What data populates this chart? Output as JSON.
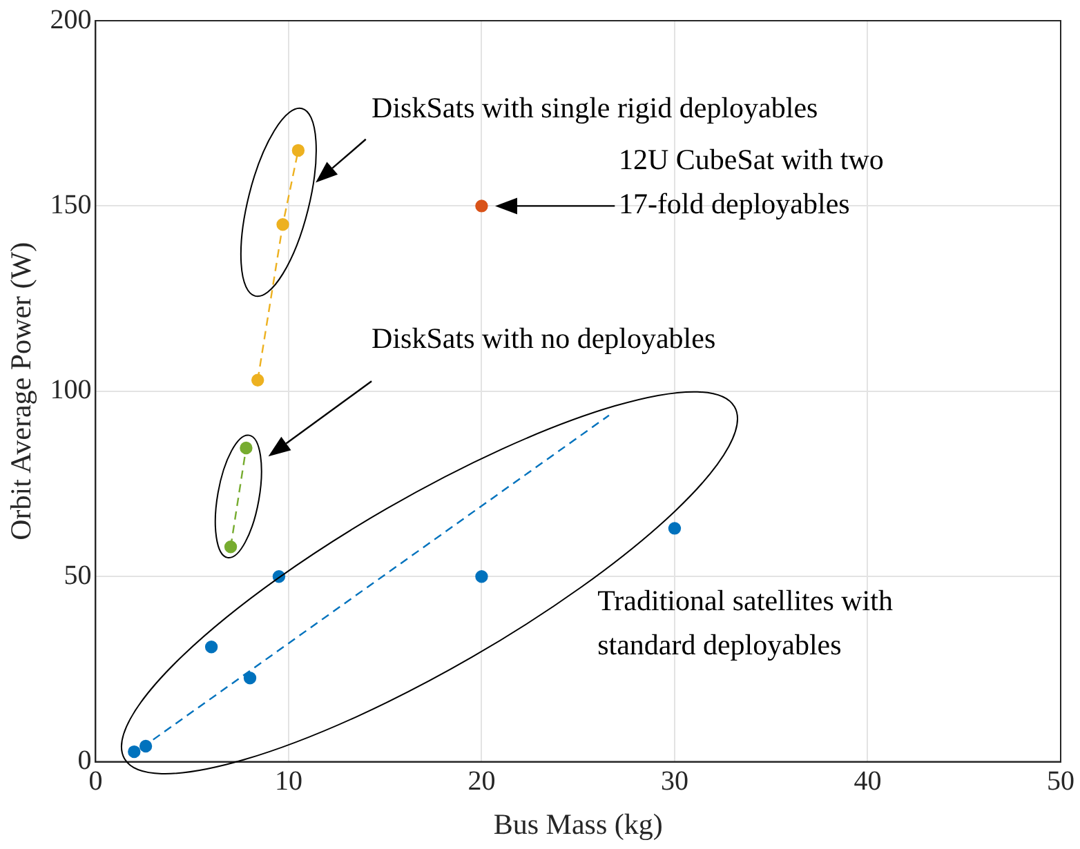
{
  "chart_data": {
    "type": "scatter",
    "xlabel": "Bus Mass (kg)",
    "ylabel": "Orbit Average Power (W)",
    "xlim": [
      0,
      50
    ],
    "xticks": [
      0,
      10,
      20,
      30,
      40,
      50
    ],
    "ylim": [
      0,
      200
    ],
    "yticks": [
      0,
      50,
      100,
      150,
      200
    ],
    "grid": true,
    "legend": false,
    "marker": "circle",
    "series": [
      {
        "type": "scatter",
        "color": "#0072bd",
        "x": [
          2,
          2.6,
          6,
          8,
          9.5,
          20,
          30
        ],
        "values": [
          2.7,
          4.2,
          31,
          22.6,
          50,
          50,
          63
        ]
      },
      {
        "type": "line",
        "color": "#0072bd",
        "x": [
          2.4,
          26.6
        ],
        "values": [
          3.8,
          93.5
        ],
        "line_style": "dashed",
        "marker": "none"
      },
      {
        "type": "line",
        "color": "#77ac30",
        "x": [
          7,
          7.8
        ],
        "values": [
          58,
          84.7
        ],
        "line_style": "dashed",
        "marker": "circle"
      },
      {
        "type": "line",
        "color": "#edb120",
        "x": [
          8.4,
          9.7,
          10.5
        ],
        "values": [
          103,
          145,
          165
        ],
        "line_style": "dashed",
        "marker": "circle"
      },
      {
        "type": "scatter",
        "color": "#d95319",
        "x": [
          20
        ],
        "values": [
          150
        ]
      }
    ],
    "annotations": [
      "DiskSats with single rigid deployables",
      "12U CubeSat with two 17-fold deployables",
      "DiskSats with no deployables",
      "Traditional satellites with standard deployables"
    ]
  }
}
